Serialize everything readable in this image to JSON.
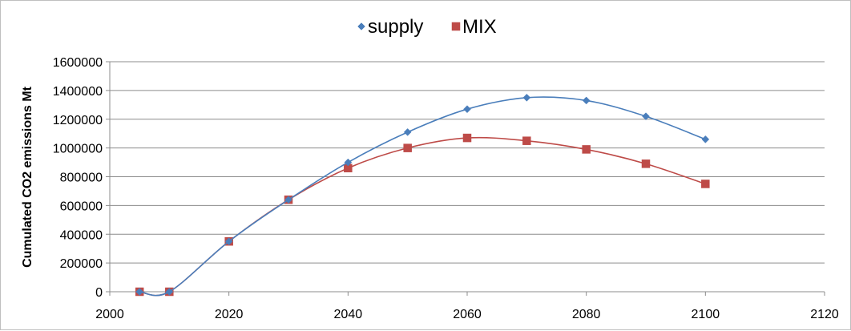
{
  "chart_data": {
    "type": "scatter",
    "title": "",
    "xlabel": "",
    "ylabel": "Cumulated CO2 emissions Mt",
    "xlim": [
      2000,
      2120
    ],
    "ylim": [
      0,
      1600000
    ],
    "x_ticks": [
      2000,
      2020,
      2040,
      2060,
      2080,
      2100,
      2120
    ],
    "y_ticks": [
      0,
      200000,
      400000,
      600000,
      800000,
      1000000,
      1200000,
      1400000,
      1600000
    ],
    "grid": "horizontal",
    "legend_position": "top",
    "smoothed_lines": true,
    "series": [
      {
        "name": "supply",
        "marker": "diamond",
        "color": "#4a7ebb",
        "points": [
          {
            "x": 2005,
            "y": 0
          },
          {
            "x": 2010,
            "y": 0
          },
          {
            "x": 2020,
            "y": 350000
          },
          {
            "x": 2030,
            "y": 640000
          },
          {
            "x": 2040,
            "y": 900000
          },
          {
            "x": 2050,
            "y": 1110000
          },
          {
            "x": 2060,
            "y": 1270000
          },
          {
            "x": 2070,
            "y": 1350000
          },
          {
            "x": 2080,
            "y": 1330000
          },
          {
            "x": 2090,
            "y": 1220000
          },
          {
            "x": 2100,
            "y": 1060000
          }
        ]
      },
      {
        "name": "MIX",
        "marker": "square",
        "color": "#be4b48",
        "points": [
          {
            "x": 2005,
            "y": 0
          },
          {
            "x": 2010,
            "y": 0
          },
          {
            "x": 2020,
            "y": 350000
          },
          {
            "x": 2030,
            "y": 640000
          },
          {
            "x": 2040,
            "y": 860000
          },
          {
            "x": 2050,
            "y": 1000000
          },
          {
            "x": 2060,
            "y": 1070000
          },
          {
            "x": 2070,
            "y": 1050000
          },
          {
            "x": 2080,
            "y": 990000
          },
          {
            "x": 2090,
            "y": 890000
          },
          {
            "x": 2100,
            "y": 750000
          }
        ]
      }
    ]
  }
}
